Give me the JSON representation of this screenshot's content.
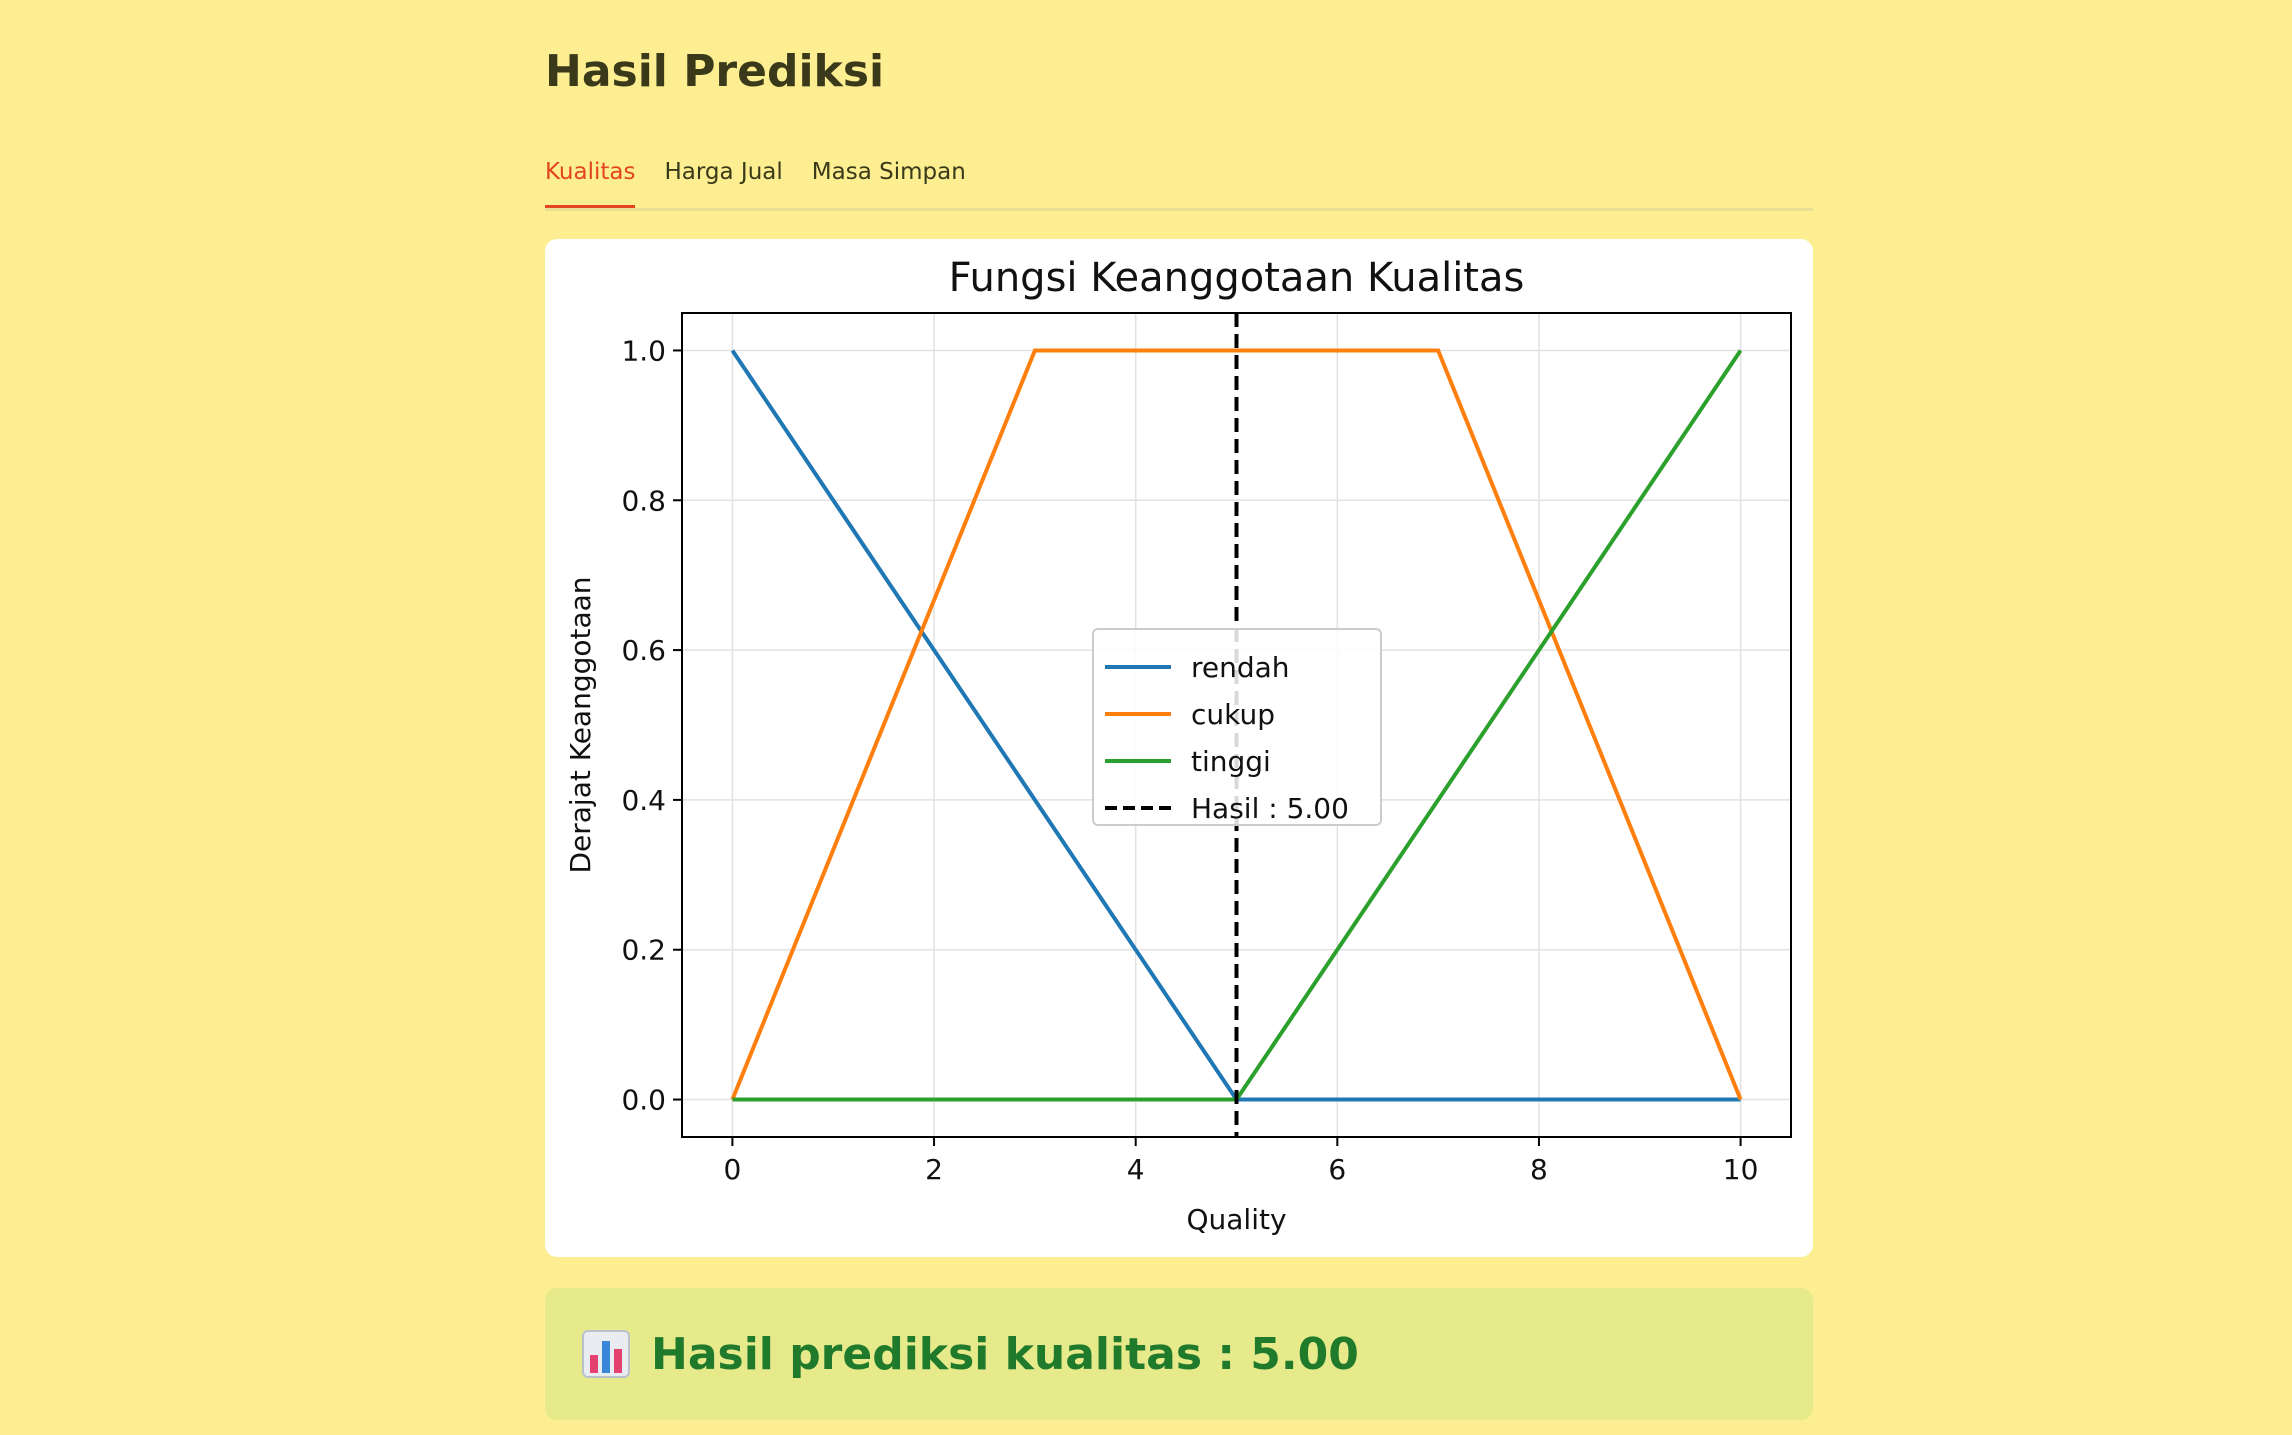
{
  "page": {
    "title": "Hasil Prediksi"
  },
  "tabs": [
    {
      "label": "Kualitas",
      "active": true
    },
    {
      "label": "Harga Jual",
      "active": false
    },
    {
      "label": "Masa Simpan",
      "active": false
    }
  ],
  "chart_data": {
    "type": "line",
    "title": "Fungsi Keanggotaan Kualitas",
    "xlabel": "Quality",
    "ylabel": "Derajat Keanggotaan",
    "xlim": [
      -0.5,
      10.5
    ],
    "ylim": [
      -0.05,
      1.05
    ],
    "xticks": [
      0,
      2,
      4,
      6,
      8,
      10
    ],
    "yticks": [
      0.0,
      0.2,
      0.4,
      0.6,
      0.8,
      1.0
    ],
    "grid": true,
    "legend_position": "center",
    "series": [
      {
        "name": "rendah",
        "color": "#1f77b4",
        "x": [
          0,
          5,
          10
        ],
        "y": [
          1.0,
          0.0,
          0.0
        ]
      },
      {
        "name": "cukup",
        "color": "#ff7f0e",
        "x": [
          0,
          3,
          7,
          10
        ],
        "y": [
          0.0,
          1.0,
          1.0,
          0.0
        ]
      },
      {
        "name": "tinggi",
        "color": "#2ca02c",
        "x": [
          0,
          5,
          10
        ],
        "y": [
          0.0,
          0.0,
          1.0
        ]
      }
    ],
    "vline": {
      "name": "Hasil : 5.00",
      "x": 5.0,
      "color": "#000000",
      "style": "dashed"
    }
  },
  "result": {
    "icon": "bar-chart-icon",
    "text": "Hasil prediksi kualitas : 5.00"
  }
}
